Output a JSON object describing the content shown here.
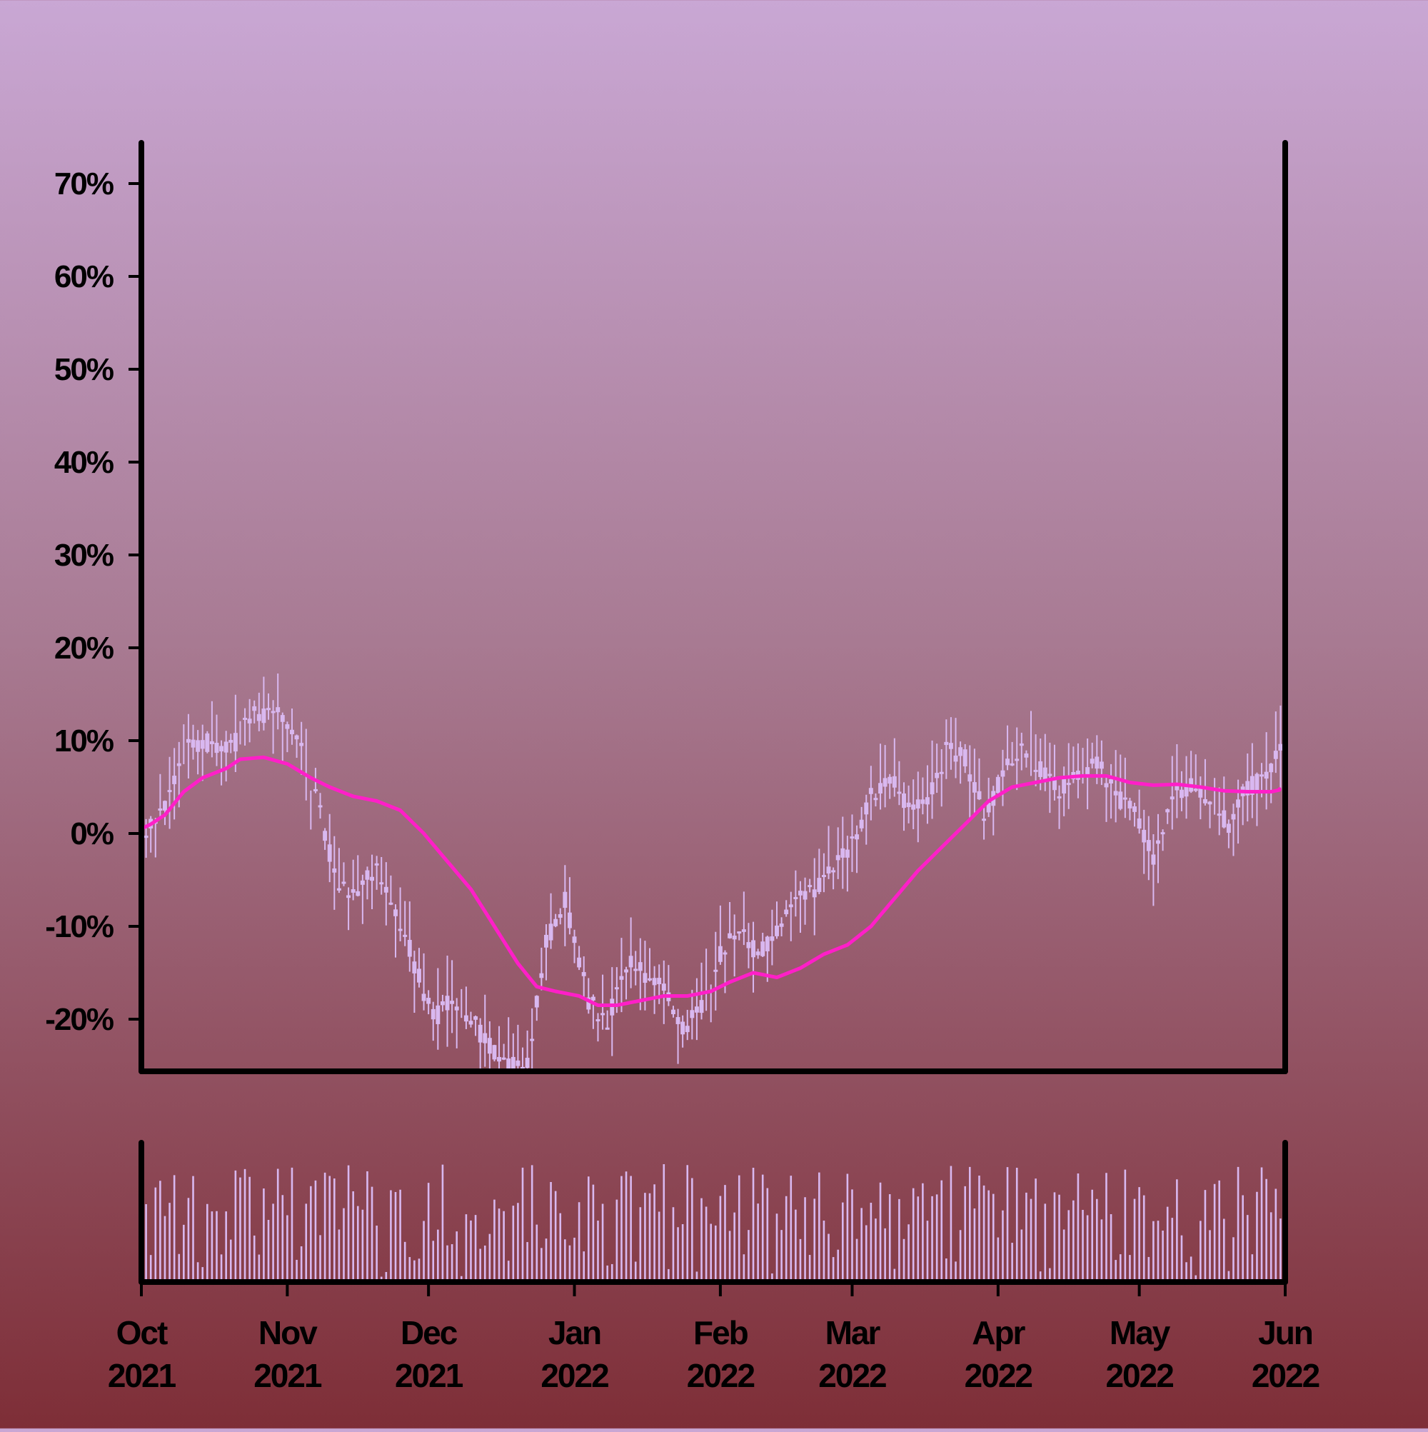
{
  "chart_data": {
    "type": "candlestick",
    "title": "",
    "xlabel": "",
    "ylabel": "",
    "colors": {
      "candles": "#d9b8f0",
      "volume": "#d9b8f0",
      "moving_average": "#ff1fc8",
      "axes": "#000000",
      "background_top": "#c9a7d4",
      "background_bottom": "#7e2e37"
    },
    "price_axis": {
      "ylim": [
        -25.5,
        74
      ],
      "ticks": [
        -20,
        -10,
        0,
        10,
        20,
        30,
        40,
        50,
        60,
        70
      ],
      "tick_labels": [
        "-20%",
        "-10%",
        "0%",
        "10%",
        "20%",
        "30%",
        "40%",
        "50%",
        "60%",
        "70%"
      ]
    },
    "x_axis": {
      "start": "2021-10-01",
      "end": "2022-06-01",
      "ticks": [
        "2021-10-01",
        "2021-11-01",
        "2021-12-01",
        "2022-01-01",
        "2022-02-01",
        "2022-03-01",
        "2022-04-01",
        "2022-05-01",
        "2022-06-01"
      ],
      "tick_labels": [
        [
          "Oct",
          "2021"
        ],
        [
          "Nov",
          "2021"
        ],
        [
          "Dec",
          "2021"
        ],
        [
          "Jan",
          "2022"
        ],
        [
          "Feb",
          "2022"
        ],
        [
          "Mar",
          "2022"
        ],
        [
          "Apr",
          "2022"
        ],
        [
          "May",
          "2022"
        ],
        [
          "Jun",
          "2022"
        ]
      ]
    },
    "price_path": {
      "description_dates": [
        "2021-10-02",
        "2021-10-06",
        "2021-10-10",
        "2021-10-16",
        "2021-10-20",
        "2021-10-25",
        "2021-10-31",
        "2021-11-04",
        "2021-11-08",
        "2021-11-12",
        "2021-11-16",
        "2021-11-20",
        "2021-11-24",
        "2021-11-28",
        "2021-12-02",
        "2021-12-06",
        "2021-12-10",
        "2021-12-14",
        "2021-12-18",
        "2021-12-22",
        "2021-12-26",
        "2021-12-30",
        "2022-01-04",
        "2022-01-08",
        "2022-01-12",
        "2022-01-16",
        "2022-01-20",
        "2022-01-24",
        "2022-01-28",
        "2022-02-01",
        "2022-02-05",
        "2022-02-09",
        "2022-02-13",
        "2022-02-17",
        "2022-02-21",
        "2022-02-25",
        "2022-03-01",
        "2022-03-05",
        "2022-03-09",
        "2022-03-13",
        "2022-03-17",
        "2022-03-21",
        "2022-03-25",
        "2022-03-29",
        "2022-04-02",
        "2022-04-06",
        "2022-04-10",
        "2022-04-14",
        "2022-04-18",
        "2022-04-22",
        "2022-04-26",
        "2022-04-30",
        "2022-05-04",
        "2022-05-08",
        "2022-05-12",
        "2022-05-16",
        "2022-05-20",
        "2022-05-24",
        "2022-05-28",
        "2022-06-01"
      ],
      "close_pct": [
        0.5,
        3,
        9,
        10,
        9,
        13,
        13,
        9,
        2,
        -6,
        -6,
        -4,
        -8,
        -14,
        -20,
        -18,
        -20,
        -23,
        -25,
        -25,
        -12,
        -7,
        -18,
        -20,
        -14,
        -15,
        -17,
        -21,
        -19,
        -13,
        -10,
        -13,
        -11,
        -7,
        -6,
        -4,
        -1,
        4,
        6,
        3,
        3,
        9,
        8,
        2,
        6,
        10,
        7,
        5,
        6,
        8,
        4,
        2,
        -3,
        4,
        5,
        4,
        1,
        5,
        6,
        10
      ]
    },
    "moving_average_path": {
      "dates": [
        "2021-10-01",
        "2021-10-03",
        "2021-10-06",
        "2021-10-10",
        "2021-10-14",
        "2021-10-19",
        "2021-10-22",
        "2021-10-27",
        "2021-11-01",
        "2021-11-06",
        "2021-11-10",
        "2021-11-15",
        "2021-11-20",
        "2021-11-25",
        "2021-11-30",
        "2021-12-05",
        "2021-12-10",
        "2021-12-15",
        "2021-12-20",
        "2021-12-24",
        "2021-12-28",
        "2022-01-02",
        "2022-01-06",
        "2022-01-10",
        "2022-01-15",
        "2022-01-20",
        "2022-01-25",
        "2022-01-30",
        "2022-02-03",
        "2022-02-08",
        "2022-02-13",
        "2022-02-18",
        "2022-02-23",
        "2022-02-28",
        "2022-03-05",
        "2022-03-10",
        "2022-03-15",
        "2022-03-20",
        "2022-03-25",
        "2022-03-30",
        "2022-04-04",
        "2022-04-09",
        "2022-04-14",
        "2022-04-19",
        "2022-04-24",
        "2022-04-29",
        "2022-05-04",
        "2022-05-09",
        "2022-05-14",
        "2022-05-19",
        "2022-05-24",
        "2022-05-29",
        "2022-06-01"
      ],
      "values": [
        0.5,
        1,
        2,
        4.5,
        6,
        7,
        8,
        8.2,
        7.5,
        6,
        5,
        4,
        3.5,
        2.5,
        0,
        -3,
        -6,
        -10,
        -14,
        -16.5,
        -17,
        -17.5,
        -18.5,
        -18.5,
        -18,
        -17.5,
        -17.5,
        -17,
        -16,
        -15,
        -15.5,
        -14.5,
        -13,
        -12,
        -10,
        -7,
        -4,
        -1.5,
        1,
        3.5,
        5,
        5.5,
        6,
        6.2,
        6.2,
        5.5,
        5.2,
        5.3,
        5,
        4.6,
        4.5,
        4.5,
        4.8
      ]
    },
    "volume": {
      "ylim": [
        0,
        100
      ],
      "seed": 20211001
    }
  }
}
